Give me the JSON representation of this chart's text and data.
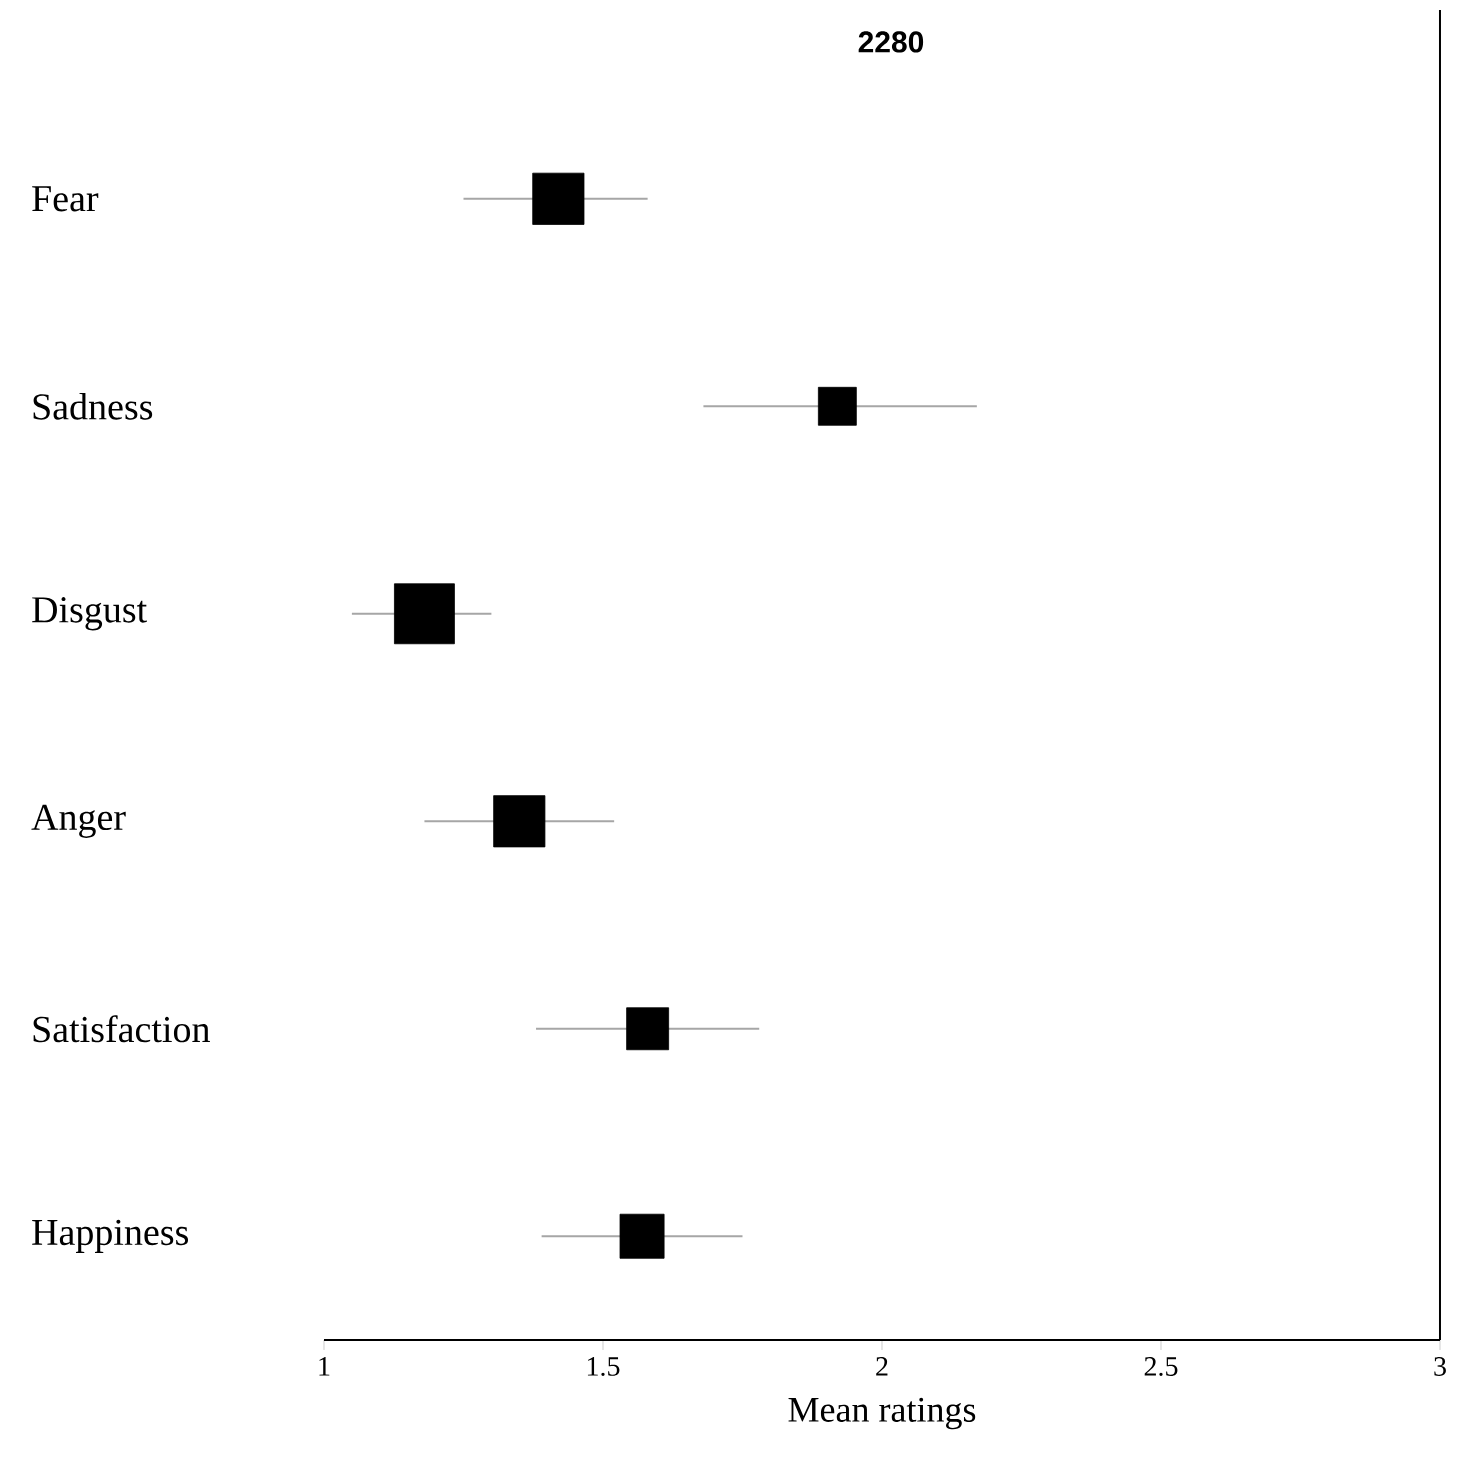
{
  "chart_data": {
    "type": "bubble",
    "orientation": "horizontal",
    "title": "2280",
    "xlabel": "Mean ratings",
    "categories": [
      "Fear",
      "Sadness",
      "Disgust",
      "Anger",
      "Satisfaction",
      "Happiness"
    ],
    "values": [
      1.42,
      1.92,
      1.18,
      1.35,
      1.58,
      1.57
    ],
    "errors": [
      [
        1.25,
        1.58
      ],
      [
        1.68,
        2.17
      ],
      [
        1.05,
        1.3
      ],
      [
        1.18,
        1.52
      ],
      [
        1.38,
        1.78
      ],
      [
        1.39,
        1.75
      ]
    ],
    "sizes": [
      0.73,
      0.4,
      1,
      0.73,
      0.49,
      0.54
    ],
    "color": "#000000",
    "marker": "square",
    "xlim": [
      1,
      3
    ],
    "xticks": [
      1,
      1.5,
      2,
      2.5,
      3
    ]
  }
}
